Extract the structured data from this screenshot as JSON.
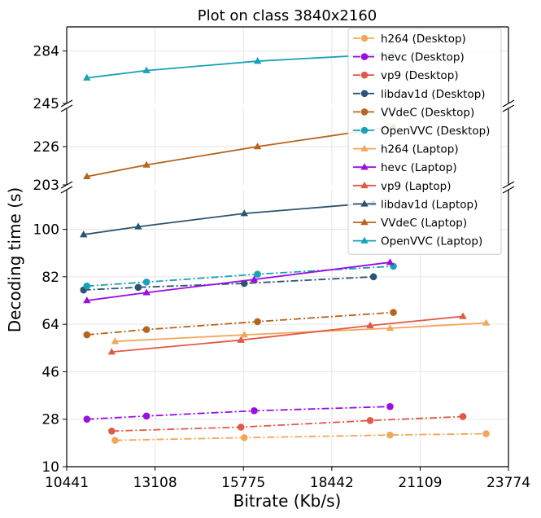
{
  "chart_data": {
    "type": "line",
    "title": "Plot on class 3840x2160",
    "xlabel": "Bitrate (Kb/s)",
    "ylabel": "Decoding time (s)",
    "xlim": [
      10441,
      23774
    ],
    "xticks": [
      10441,
      13108,
      15775,
      18442,
      21109,
      23774
    ],
    "broken_y_axis": true,
    "panels": [
      {
        "name": "top",
        "ylim": [
          245,
          302
        ],
        "yticks": [
          245,
          284
        ]
      },
      {
        "name": "middle",
        "ylim": [
          203,
          249
        ],
        "yticks": [
          203,
          226
        ]
      },
      {
        "name": "bottom",
        "ylim": [
          10,
          115
        ],
        "yticks": [
          10,
          28,
          46,
          64,
          82,
          100
        ]
      }
    ],
    "grid": true,
    "legend_position": "upper-right",
    "series": [
      {
        "name": "h264 (Desktop)",
        "color": "#f2a65a",
        "marker": "circle",
        "dash": "dashdot",
        "panel": "bottom",
        "x": [
          11900,
          15800,
          20200,
          23100
        ],
        "y": [
          20.0,
          21.0,
          22.0,
          22.5
        ]
      },
      {
        "name": "hevc (Desktop)",
        "color": "#9b0ee0",
        "marker": "circle",
        "dash": "dashdot",
        "panel": "bottom",
        "x": [
          11050,
          12850,
          16100,
          20200
        ],
        "y": [
          28.0,
          29.2,
          31.2,
          32.8
        ]
      },
      {
        "name": "vp9 (Desktop)",
        "color": "#e05a47",
        "marker": "circle",
        "dash": "dashdot",
        "panel": "bottom",
        "x": [
          11800,
          15700,
          19600,
          22400
        ],
        "y": [
          23.5,
          25.0,
          27.5,
          29.0
        ]
      },
      {
        "name": "libdav1d (Desktop)",
        "color": "#2d5473",
        "marker": "circle",
        "dash": "dashdot",
        "panel": "bottom",
        "x": [
          10950,
          12600,
          15800,
          19700
        ],
        "y": [
          77.0,
          78.0,
          79.5,
          82.0
        ]
      },
      {
        "name": "VVdeC (Desktop)",
        "color": "#b5651d",
        "marker": "circle",
        "dash": "dashdot",
        "panel": "bottom",
        "x": [
          11050,
          12850,
          16200,
          20300
        ],
        "y": [
          60.0,
          62.0,
          65.0,
          68.5
        ]
      },
      {
        "name": "OpenVVC (Desktop)",
        "color": "#17a2b8",
        "marker": "circle",
        "dash": "dashdot",
        "panel": "bottom",
        "x": [
          11050,
          12850,
          16200,
          20300
        ],
        "y": [
          78.5,
          80.0,
          83.0,
          86.0
        ]
      },
      {
        "name": "h264 (Laptop)",
        "color": "#f2a65a",
        "marker": "triangle",
        "dash": "solid",
        "panel": "bottom",
        "x": [
          11900,
          15800,
          20200,
          23100
        ],
        "y": [
          57.5,
          60.0,
          62.5,
          64.5
        ]
      },
      {
        "name": "hevc (Laptop)",
        "color": "#9b0ee0",
        "marker": "triangle",
        "dash": "solid",
        "panel": "bottom",
        "x": [
          11050,
          12850,
          16100,
          20200
        ],
        "y": [
          73.0,
          76.0,
          81.0,
          87.5
        ]
      },
      {
        "name": "vp9 (Laptop)",
        "color": "#e05a47",
        "marker": "triangle",
        "dash": "solid",
        "panel": "bottom",
        "x": [
          11800,
          15700,
          19600,
          22400
        ],
        "y": [
          53.5,
          58.0,
          63.5,
          67.0
        ]
      },
      {
        "name": "libdav1d (Laptop)",
        "color": "#2d5473",
        "marker": "triangle",
        "dash": "solid",
        "panel": "bottom",
        "x": [
          10950,
          12600,
          15800,
          19700
        ],
        "y": [
          98.0,
          101.0,
          106.0,
          110.0
        ]
      },
      {
        "name": "VVdeC (Laptop)",
        "color": "#b5651d",
        "marker": "triangle",
        "dash": "solid",
        "panel": "middle",
        "x": [
          11050,
          12850,
          16200,
          20300
        ],
        "y": [
          208.0,
          215.0,
          226.0,
          238.0
        ]
      },
      {
        "name": "OpenVVC (Laptop)",
        "color": "#17a2b8",
        "marker": "triangle",
        "dash": "solid",
        "panel": "top",
        "x": [
          11050,
          12850,
          16200,
          20300
        ],
        "y": [
          264.0,
          269.5,
          276.5,
          282.0
        ]
      }
    ]
  }
}
